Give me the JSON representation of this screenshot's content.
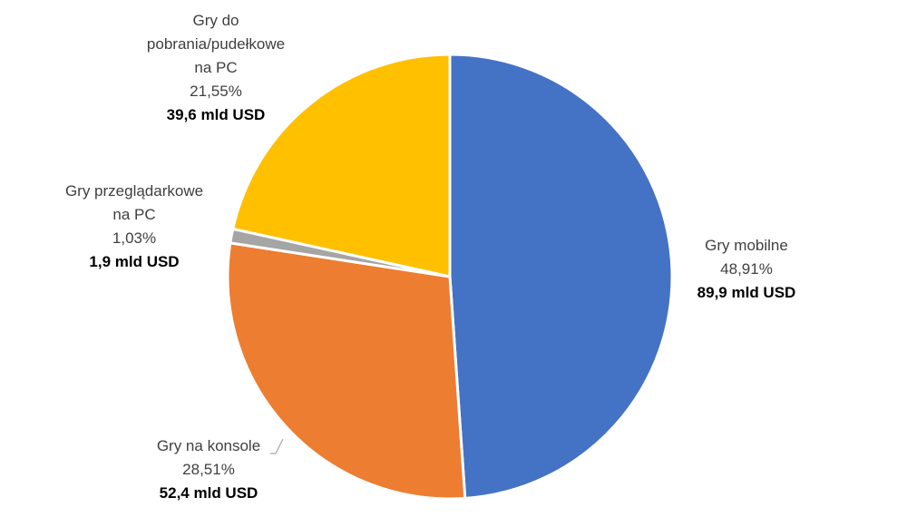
{
  "chart_data": {
    "type": "pie",
    "categories": [
      "Gry mobilne",
      "Gry na konsole",
      "Gry przeglądarkowe\nna PC",
      "Gry do\npobrania/pudełkowe\nna PC"
    ],
    "values": [
      48.91,
      28.51,
      1.03,
      21.55
    ],
    "value_labels": [
      "48,91%",
      "28,51%",
      "1,03%",
      "21,55%"
    ],
    "amounts": [
      89.9,
      52.4,
      1.9,
      39.6
    ],
    "amount_labels": [
      "89,9 mld USD",
      "52,4 mld USD",
      "1,9 mld USD",
      "39,6 mld USD"
    ],
    "colors": [
      "#4472c4",
      "#ed7d31",
      "#a5a5a5",
      "#ffc000"
    ]
  }
}
